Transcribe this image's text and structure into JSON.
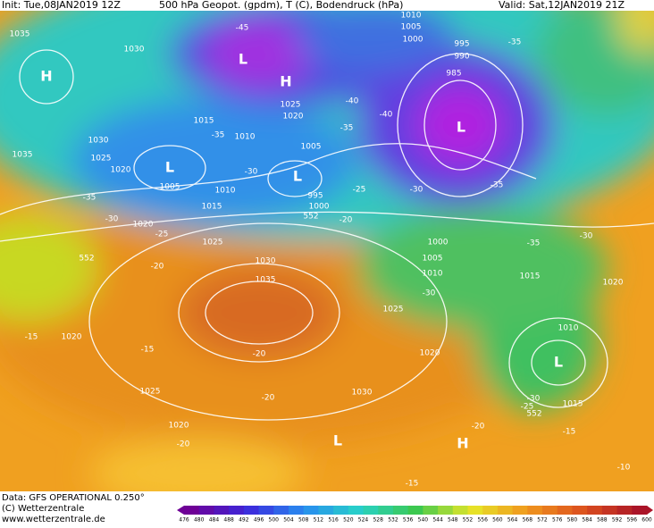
{
  "header": {
    "init": "Init: Tue,08JAN2019 12Z",
    "product": "500 hPa Geopot. (gpdm), T (C), Bodendruck (hPa)",
    "valid": "Valid: Sat,12JAN2019 21Z"
  },
  "footer": {
    "data": "Data: GFS OPERATIONAL 0.250°",
    "copyright": "(C) Wetterzentrale",
    "url": "www.wetterzentrale.de"
  },
  "colorbar": {
    "ticks": [
      476,
      480,
      484,
      488,
      492,
      496,
      500,
      504,
      508,
      512,
      516,
      520,
      524,
      528,
      532,
      536,
      540,
      544,
      548,
      552,
      556,
      560,
      564,
      568,
      572,
      576,
      580,
      584,
      588,
      592,
      596,
      600
    ]
  },
  "map_labels": {
    "isobars": [
      1035,
      1030,
      1030,
      1025,
      1020,
      1035,
      1015,
      1010,
      1025,
      1020,
      1005,
      1005,
      1010,
      1015,
      995,
      1000,
      1020,
      1025,
      1030,
      1035,
      1025,
      1020,
      1025,
      1020,
      1020,
      1030,
      1010,
      1005,
      1000,
      995,
      990,
      985,
      1000,
      1005,
      1010,
      1015,
      1020,
      1010,
      1015
    ],
    "temperatures": [
      -45,
      -35,
      -35,
      -40,
      -40,
      -35,
      -30,
      -25,
      -35,
      -30,
      -25,
      -20,
      -20,
      -30,
      -35,
      -35,
      -30,
      -30,
      -15,
      -15,
      -20,
      -20,
      -20,
      -20,
      -25,
      -30,
      -15,
      -15,
      -10
    ],
    "heights": [
      552,
      552,
      552
    ],
    "centers": [
      "H",
      "L",
      "H",
      "L",
      "L",
      "L",
      "L",
      "H",
      "L"
    ]
  }
}
